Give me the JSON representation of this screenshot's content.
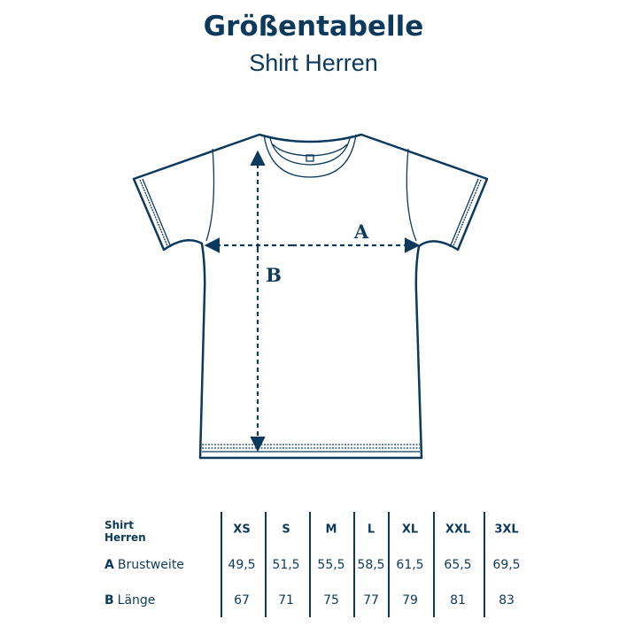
{
  "title": "Größentabelle",
  "subtitle": "Shirt Herren",
  "colors": {
    "primary": "#0d3a5c"
  },
  "diagram": {
    "label_a": "A",
    "label_b": "B"
  },
  "table": {
    "corner_line1": "Shirt",
    "corner_line2": "Herren",
    "sizes": [
      "XS",
      "S",
      "M",
      "L",
      "XL",
      "XXL",
      "3XL"
    ],
    "rows": [
      {
        "key": "A",
        "label": "Brustweite",
        "values": [
          "49,5",
          "51,5",
          "55,5",
          "58,5",
          "61,5",
          "65,5",
          "69,5"
        ]
      },
      {
        "key": "B",
        "label": "Länge",
        "values": [
          "67",
          "71",
          "75",
          "77",
          "79",
          "81",
          "83"
        ]
      }
    ]
  }
}
